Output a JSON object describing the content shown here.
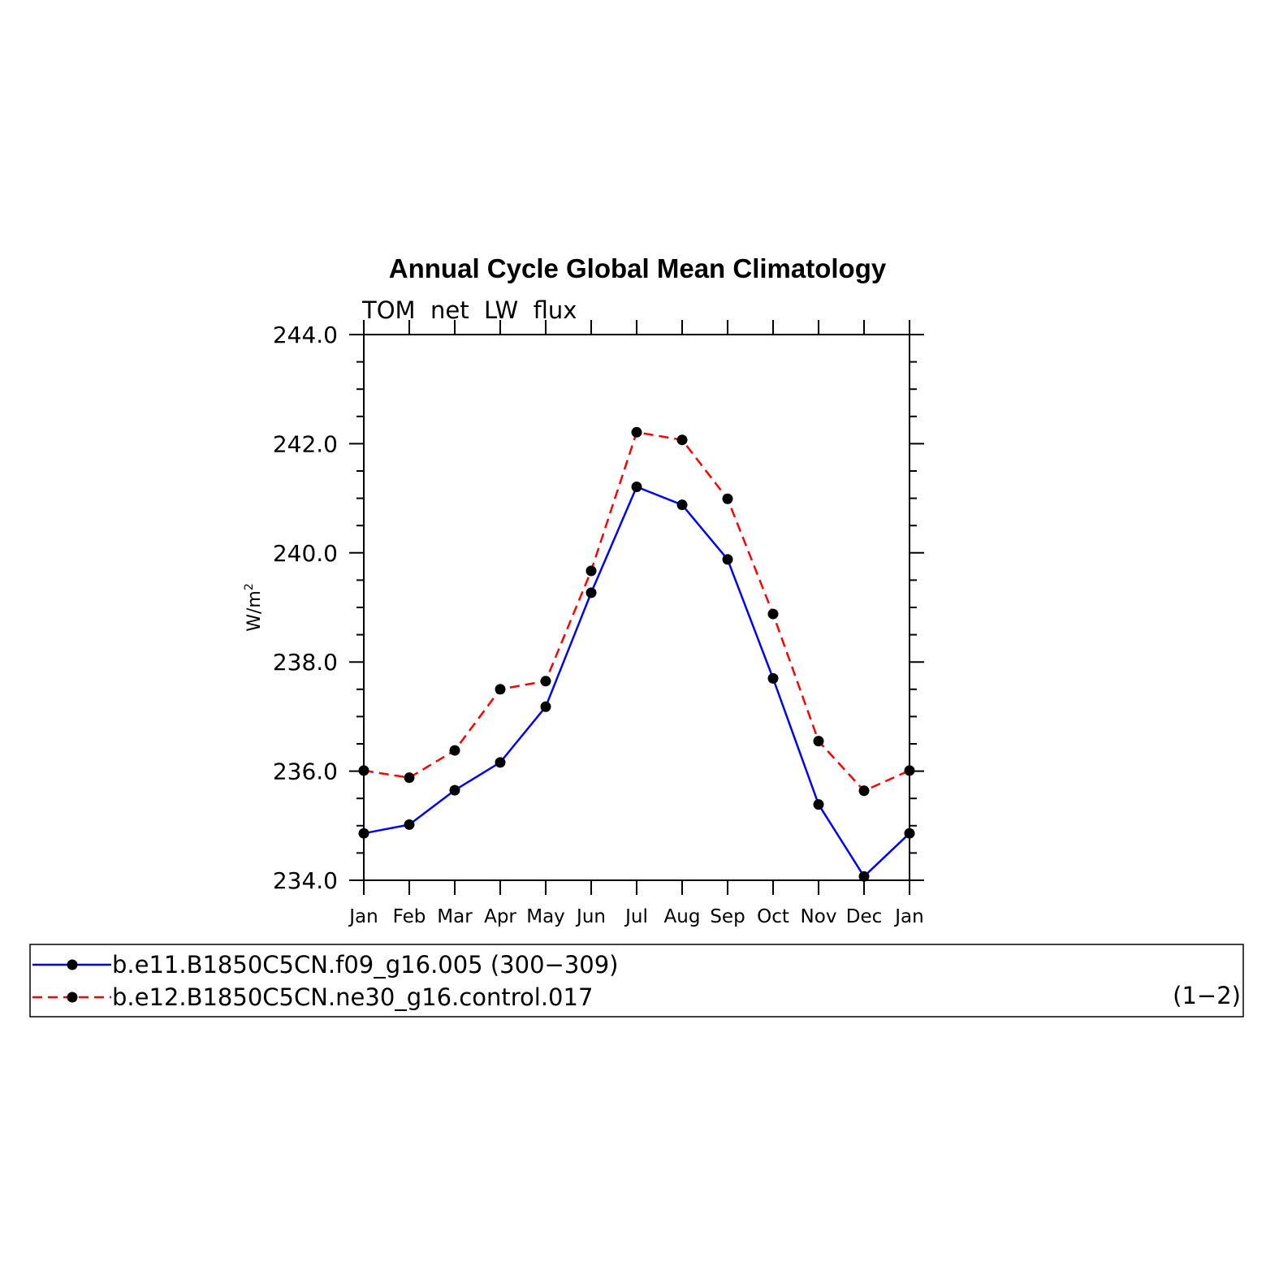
{
  "chart_data": {
    "type": "line",
    "title": "Annual Cycle Global Mean Climatology",
    "subtitle": "TOM  net  LW  flux",
    "ylabel": "W/m",
    "ylabel_sup": "2",
    "ylim": [
      234.0,
      244.0
    ],
    "yticks": [
      "234.0",
      "236.0",
      "238.0",
      "240.0",
      "242.0",
      "244.0"
    ],
    "categories": [
      "Jan",
      "Feb",
      "Mar",
      "Apr",
      "May",
      "Jun",
      "Jul",
      "Aug",
      "Sep",
      "Oct",
      "Nov",
      "Dec",
      "Jan"
    ],
    "series": [
      {
        "name": "b.e11.B1850C5CN.f09_g16.005 (300−309)",
        "color": "#0000ff",
        "dash": "solid",
        "values": [
          234.86,
          235.02,
          235.65,
          236.16,
          237.18,
          239.27,
          241.21,
          240.88,
          239.88,
          237.7,
          235.39,
          234.07,
          234.86
        ]
      },
      {
        "name": "b.e12.B1850C5CN.ne30_g16.control.017",
        "color": "#ff0000",
        "dash": "dashed",
        "values": [
          236.01,
          235.88,
          236.38,
          237.5,
          237.65,
          239.67,
          242.21,
          242.07,
          240.99,
          238.88,
          236.55,
          235.64,
          236.01
        ]
      }
    ],
    "legend_placement": "bottom",
    "panel_label": "(1−2)",
    "grid": false
  }
}
